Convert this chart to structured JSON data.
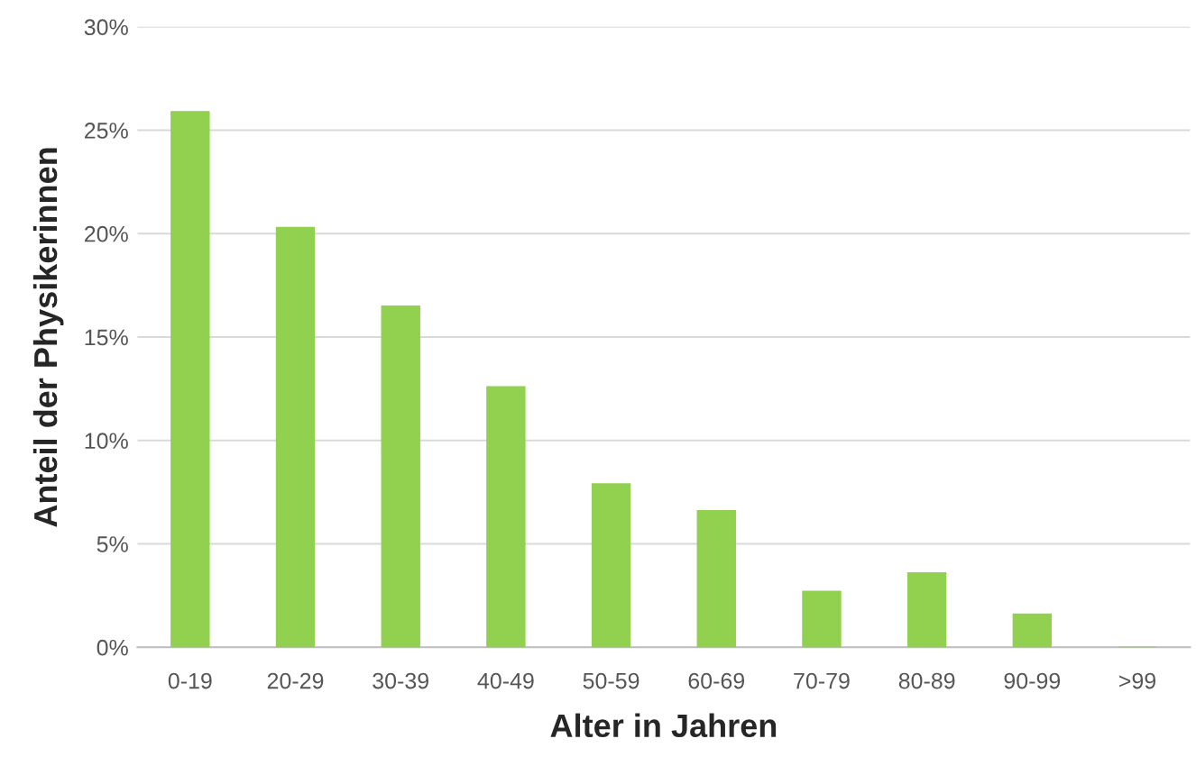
{
  "chart_data": {
    "type": "bar",
    "xlabel": "Alter in Jahren",
    "ylabel": "Anteil der Physikerinnen",
    "categories": [
      "0-19",
      "20-29",
      "30-39",
      "40-49",
      "50-59",
      "60-69",
      "70-79",
      "80-89",
      "90-99",
      ">99"
    ],
    "values": [
      25.9,
      20.3,
      16.5,
      12.6,
      7.9,
      6.6,
      2.7,
      3.6,
      1.6,
      0
    ],
    "color": "#92d050",
    "ylim": [
      0,
      30
    ],
    "yticks": [
      {
        "value": 0,
        "label": "0%"
      },
      {
        "value": 5,
        "label": "5%"
      },
      {
        "value": 10,
        "label": "10%"
      },
      {
        "value": 15,
        "label": "15%"
      },
      {
        "value": 20,
        "label": "20%"
      },
      {
        "value": 25,
        "label": "25%"
      },
      {
        "value": 30,
        "label": "30%"
      }
    ],
    "grid": "y"
  }
}
